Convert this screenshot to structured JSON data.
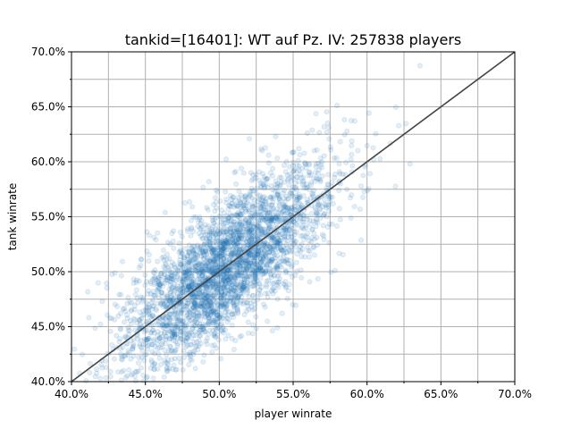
{
  "chart_data": {
    "type": "scatter",
    "title": "tankid=[16401]: WT auf Pz. IV: 257838 players",
    "xlabel": "player winrate",
    "ylabel": "tank winrate",
    "xlim": [
      0.4,
      0.7
    ],
    "ylim": [
      0.4,
      0.7
    ],
    "x_ticks": [
      0.4,
      0.45,
      0.5,
      0.55,
      0.6,
      0.65,
      0.7
    ],
    "x_tick_labels": [
      "40.0%",
      "45.0%",
      "50.0%",
      "55.0%",
      "60.0%",
      "65.0%",
      "70.0%"
    ],
    "y_ticks": [
      0.4,
      0.45,
      0.5,
      0.55,
      0.6,
      0.65,
      0.7
    ],
    "y_tick_labels": [
      "40.0%",
      "45.0%",
      "50.0%",
      "55.0%",
      "60.0%",
      "65.0%",
      "70.0%"
    ],
    "x_minor_grid": [
      0.425,
      0.475,
      0.525,
      0.575,
      0.625,
      0.675
    ],
    "y_minor_grid": [
      0.425,
      0.475,
      0.525,
      0.575,
      0.625,
      0.675
    ],
    "grid": true,
    "series": [
      {
        "color": "#1f77b4",
        "opacity": 0.12,
        "marker": "circle",
        "count": 257838,
        "distribution": {
          "center": [
            0.505,
            0.505
          ],
          "x_std": 0.035,
          "y_std": 0.045,
          "correlation": 0.75
        }
      }
    ],
    "reference_line": {
      "from": [
        0.4,
        0.4
      ],
      "to": [
        0.7,
        0.7
      ],
      "color": "#444444"
    }
  }
}
